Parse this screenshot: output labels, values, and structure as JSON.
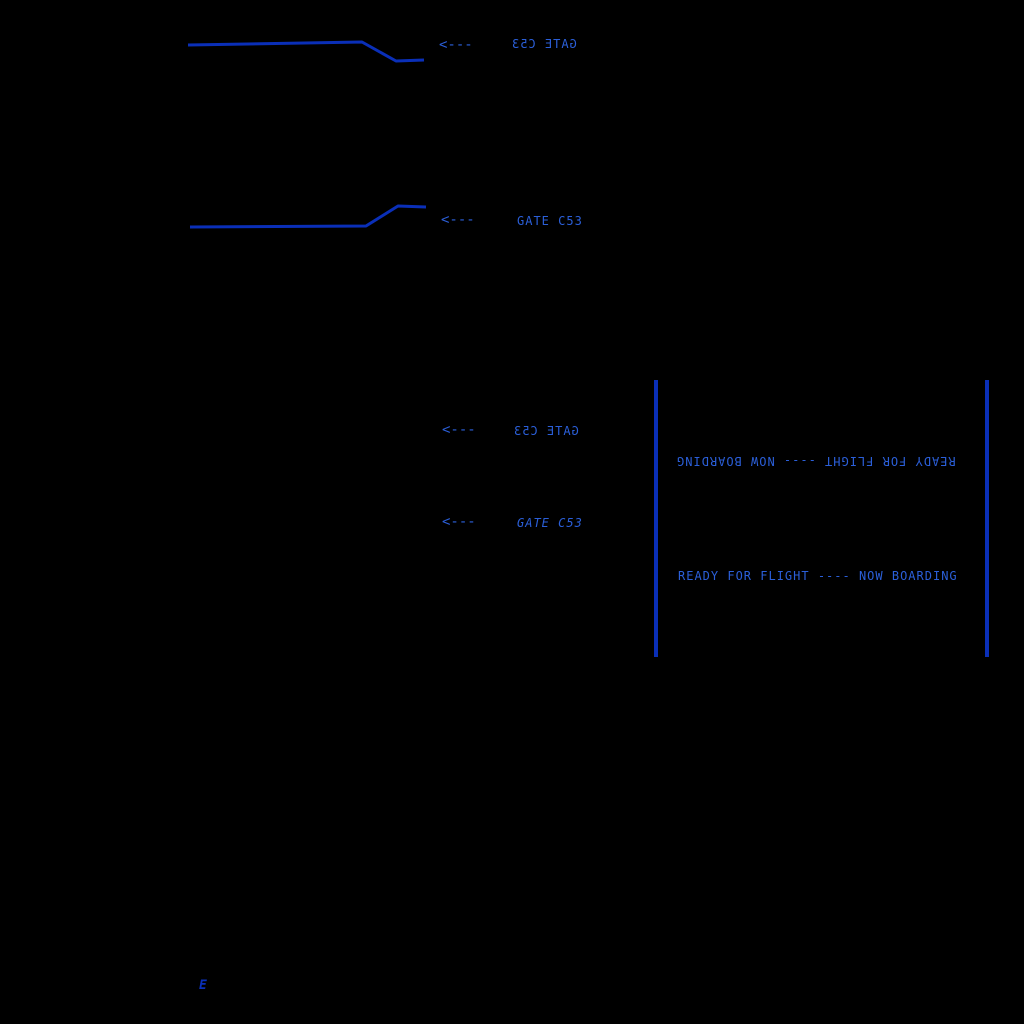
{
  "colors": {
    "background": "#000000",
    "line": "#0a2fb8",
    "text": "#2b5fd9",
    "panel_bar": "#0a2fb8"
  },
  "arrows": {
    "a1": "<---",
    "a2": "<---",
    "a3": "<---",
    "a4": "<---"
  },
  "labels": {
    "gate_mirrored_top": "GATE C53",
    "gate_normal_top": "GATE C53",
    "gate_mirrored_mid": "GATE C53",
    "gate_italic_mid": "GATE C53"
  },
  "panel": {
    "line_upside_down": "READY FOR FLIGHT ---- NOW BOARDING",
    "line_normal": "READY FOR FLIGHT ---- NOW BOARDING"
  },
  "corner_glyph": "E"
}
